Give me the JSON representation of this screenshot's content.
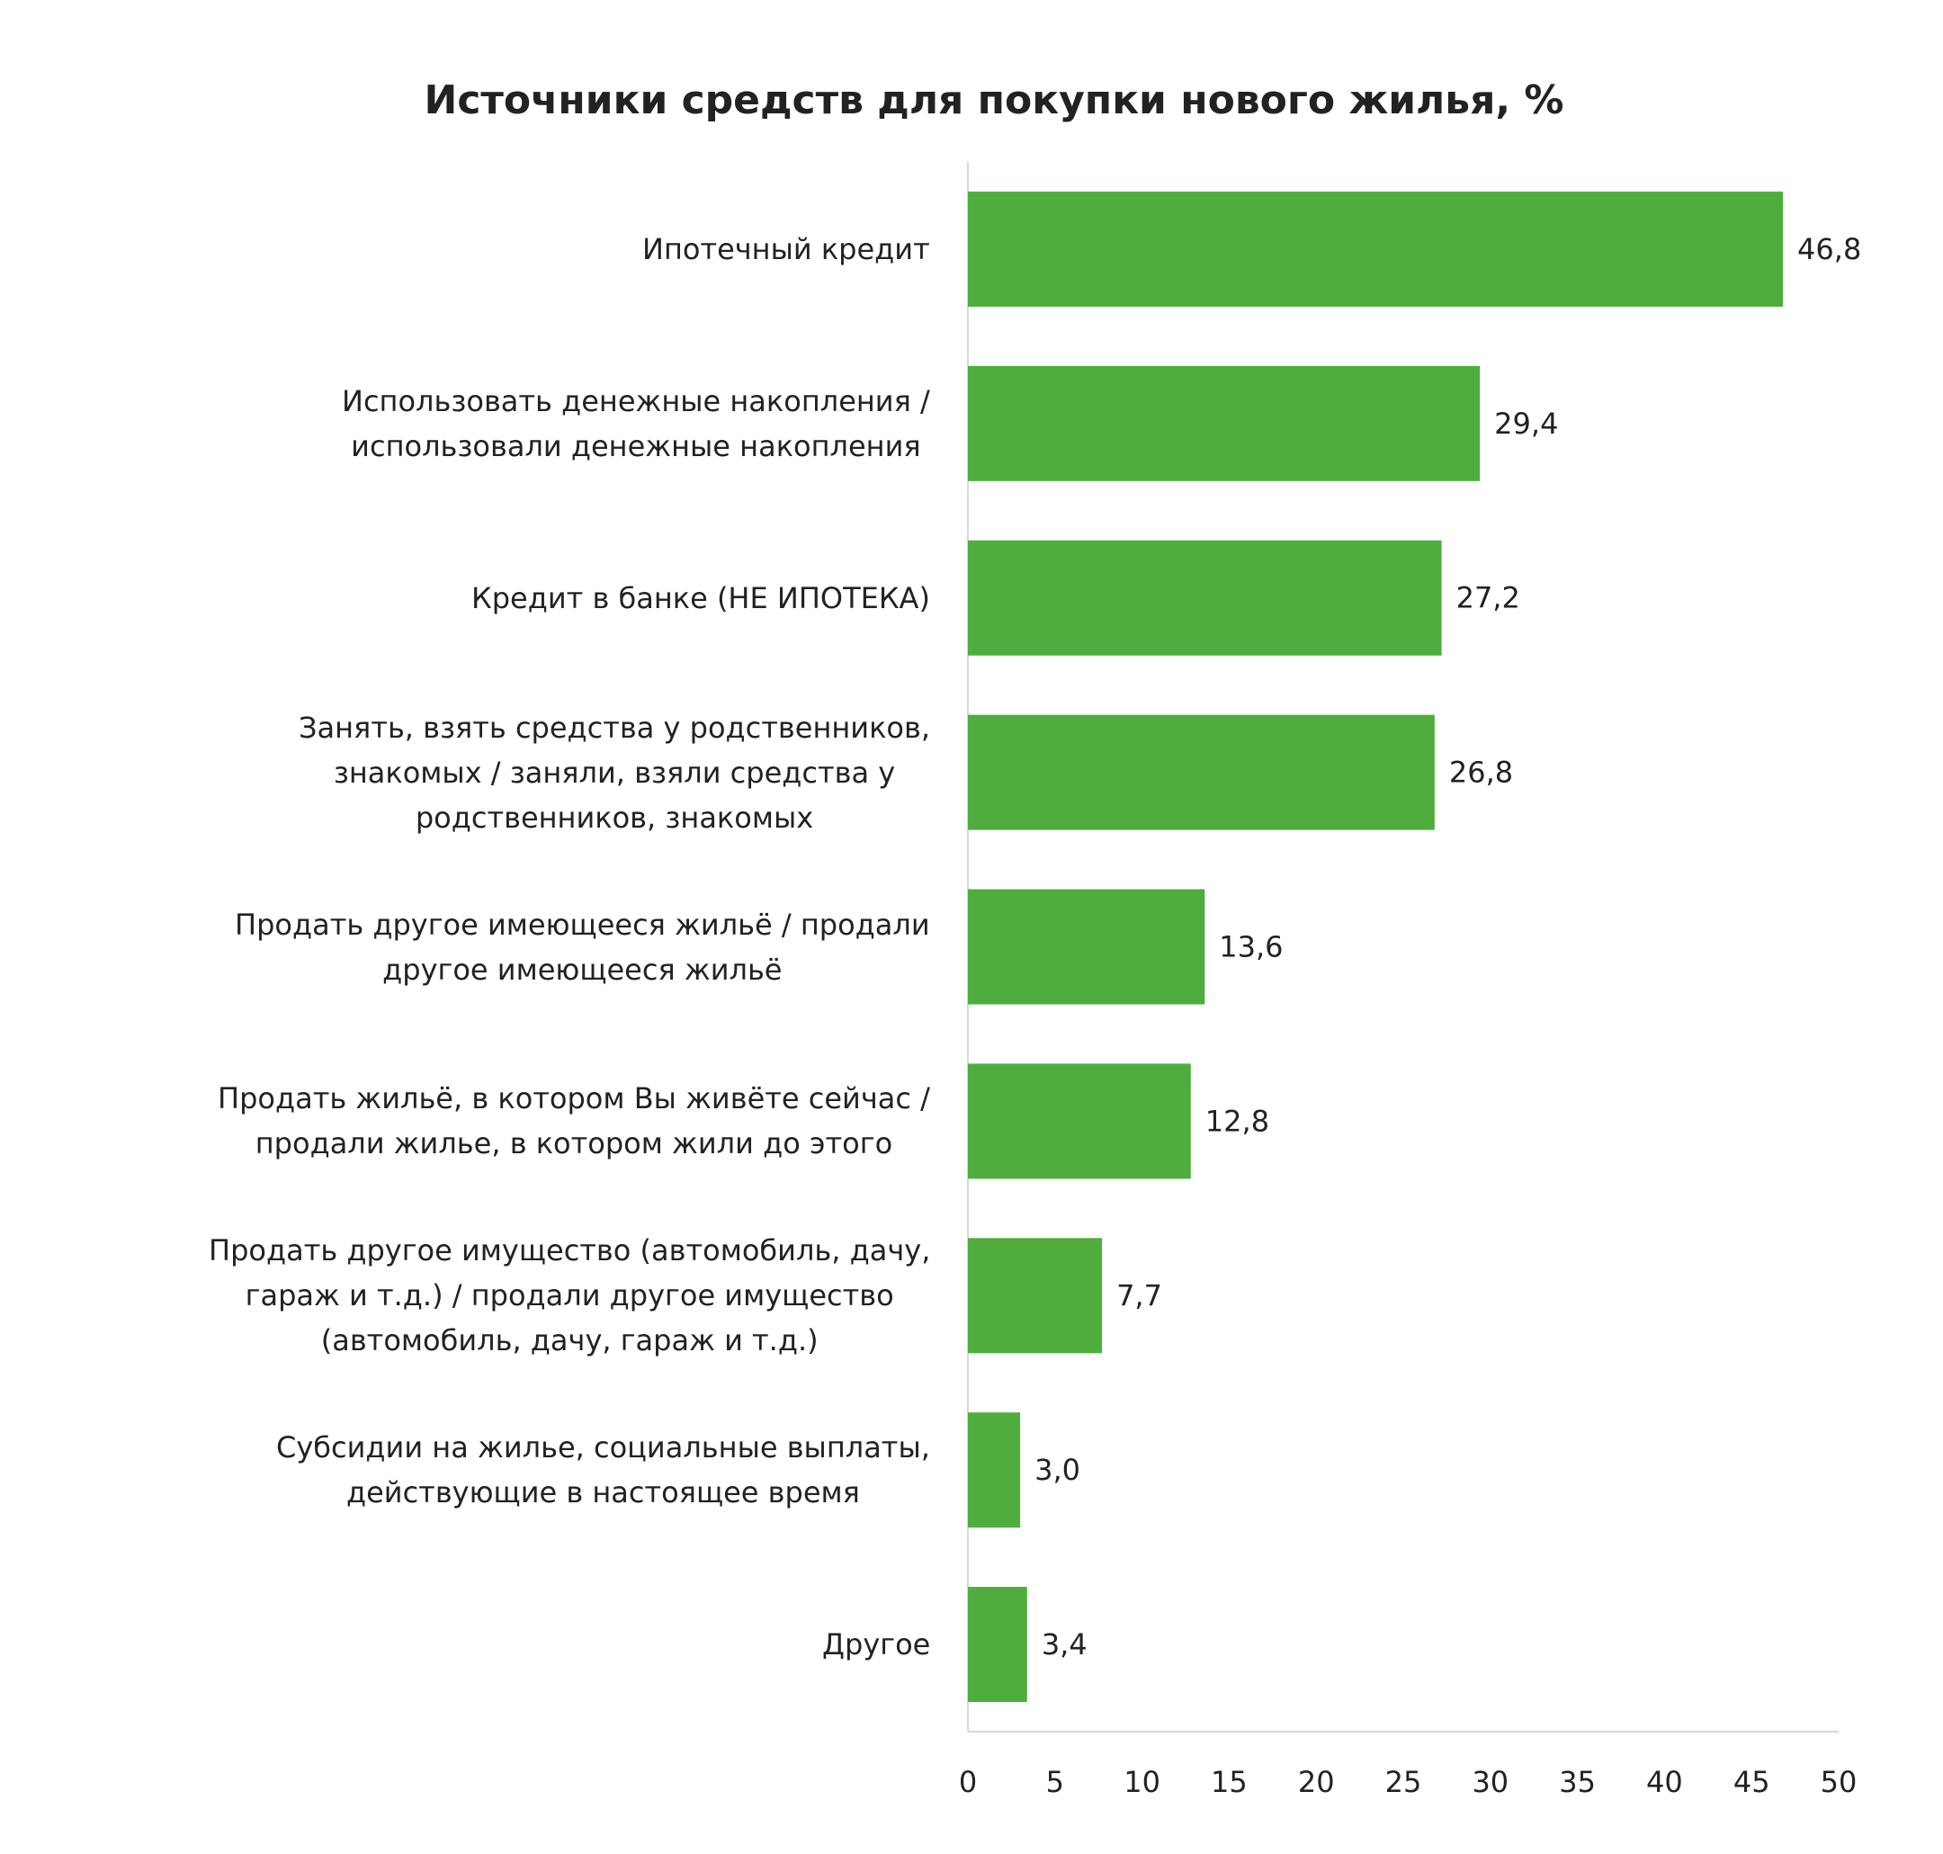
{
  "chart_data": {
    "type": "barh",
    "title": "Источники средств для покупки нового жилья, %",
    "categories": [
      "Ипотечный кредит",
      "Использовать денежные накопления /\nиспользовали денежные накопления",
      "Кредит в банке (НЕ ИПОТЕКА)",
      "Занять, взять средства у родственников,\nзнакомых / заняли, взяли средства у\nродственников, знакомых",
      "Продать другое имеющееся жильё / продали\nдругое имеющееся жильё",
      "Продать жильё, в котором Вы живёте сейчас /\nпродали жилье, в котором жили до этого",
      "Продать другое имущество (автомобиль, дачу,\nгараж и т.д.) / продали другое имущество\n(автомобиль, дачу, гараж и т.д.)",
      "Субсидии на жилье, социальные выплаты,\nдействующие в настоящее время",
      "Другое"
    ],
    "values": [
      46.8,
      29.4,
      27.2,
      26.8,
      13.6,
      12.8,
      7.7,
      3.0,
      3.4
    ],
    "value_labels": [
      "46,8",
      "29,4",
      "27,2",
      "26,8",
      "13,6",
      "12,8",
      "7,7",
      "3,0",
      "3,4"
    ],
    "color": "#4fad3d",
    "xlim": [
      0,
      50
    ],
    "xticks": [
      0,
      5,
      10,
      15,
      20,
      25,
      30,
      35,
      40,
      45,
      50
    ],
    "grid": false
  }
}
